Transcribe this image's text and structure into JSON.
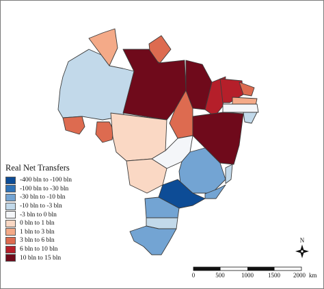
{
  "legend": {
    "title": "Real Net Transfers",
    "items": [
      {
        "label": "-400 bln to -100 bln",
        "color": "#0d4c96"
      },
      {
        "label": "-100 bln to -30 bln",
        "color": "#2f73b8"
      },
      {
        "label": "-30 bln to -10 bln",
        "color": "#73a4d3"
      },
      {
        "label": "-10 bln to -3 bln",
        "color": "#c2d9ea"
      },
      {
        "label": "-3 bln to 0 bln",
        "color": "#f4f6f9"
      },
      {
        "label": "0 bln to 1 bln",
        "color": "#fad8c4"
      },
      {
        "label": "1 bln to 3 bln",
        "color": "#f4aa88"
      },
      {
        "label": "3 bln to 6 bln",
        "color": "#dd6b50"
      },
      {
        "label": "6 bln to 10 bln",
        "color": "#b51f2a"
      },
      {
        "label": "10 bln to 15 bln",
        "color": "#6f0a1b"
      }
    ]
  },
  "north_arrow": {
    "label": "N"
  },
  "scale_bar": {
    "ticks": [
      "0",
      "500",
      "1000",
      "1500",
      "2000"
    ],
    "unit": "km"
  }
}
